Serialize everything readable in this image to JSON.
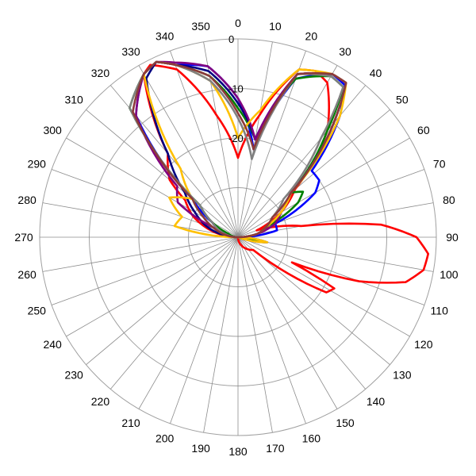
{
  "chart_data": {
    "type": "line",
    "subtype": "polar",
    "title": "",
    "angle_unit": "degrees",
    "angle_direction": "clockwise",
    "angle_zero": "top",
    "angle_ticks": [
      "0",
      "10",
      "20",
      "30",
      "40",
      "50",
      "60",
      "70",
      "80",
      "90",
      "100",
      "110",
      "120",
      "130",
      "140",
      "150",
      "160",
      "170",
      "180",
      "190",
      "200",
      "210",
      "220",
      "230",
      "240",
      "250",
      "260",
      "270",
      "280",
      "290",
      "300",
      "310",
      "320",
      "330",
      "340",
      "350"
    ],
    "radial_ticks": [
      "0",
      "-10",
      "-20"
    ],
    "radial_range": [
      -40,
      0
    ],
    "grid": true,
    "legend": "none",
    "series": [
      {
        "color": "#ff0000",
        "points": [
          [
            0,
            -24
          ],
          [
            10,
            -15
          ],
          [
            20,
            -4
          ],
          [
            25,
            -3
          ],
          [
            30,
            -4
          ],
          [
            40,
            -12
          ],
          [
            50,
            -25
          ],
          [
            60,
            -30
          ],
          [
            70,
            -36
          ],
          [
            80,
            -27
          ],
          [
            85,
            -11
          ],
          [
            90,
            -4
          ],
          [
            95,
            -1.5
          ],
          [
            100,
            -2
          ],
          [
            105,
            -5
          ],
          [
            110,
            -14
          ],
          [
            115,
            -28
          ],
          [
            118,
            -18
          ],
          [
            122,
            -19
          ],
          [
            130,
            -36
          ],
          [
            180,
            -40
          ],
          [
            270,
            -40
          ],
          [
            295,
            -30
          ],
          [
            305,
            -27
          ],
          [
            310,
            -22
          ],
          [
            315,
            -20
          ],
          [
            320,
            -18
          ],
          [
            330,
            -2
          ],
          [
            333,
            -1
          ],
          [
            340,
            -4
          ],
          [
            350,
            -15
          ],
          [
            360,
            -24
          ]
        ]
      },
      {
        "color": "#0000ff",
        "points": [
          [
            0,
            -12
          ],
          [
            10,
            -22
          ],
          [
            20,
            -6
          ],
          [
            30,
            -2
          ],
          [
            35,
            -2.5
          ],
          [
            40,
            -8
          ],
          [
            48,
            -20
          ],
          [
            55,
            -20
          ],
          [
            60,
            -22
          ],
          [
            70,
            -32
          ],
          [
            80,
            -32
          ],
          [
            90,
            -40
          ],
          [
            100,
            -34
          ],
          [
            110,
            -40
          ],
          [
            270,
            -40
          ],
          [
            290,
            -36
          ],
          [
            300,
            -34
          ],
          [
            310,
            -28
          ],
          [
            320,
            -8
          ],
          [
            330,
            -2
          ],
          [
            335,
            -1
          ],
          [
            340,
            -3
          ],
          [
            350,
            -5
          ],
          [
            360,
            -12
          ]
        ]
      },
      {
        "color": "#008000",
        "points": [
          [
            0,
            -14
          ],
          [
            10,
            -20
          ],
          [
            20,
            -6
          ],
          [
            30,
            -2.5
          ],
          [
            35,
            -3
          ],
          [
            40,
            -12
          ],
          [
            50,
            -26
          ],
          [
            55,
            -24
          ],
          [
            60,
            -26
          ],
          [
            70,
            -34
          ],
          [
            80,
            -36
          ],
          [
            90,
            -40
          ],
          [
            100,
            -36
          ],
          [
            110,
            -40
          ],
          [
            270,
            -40
          ],
          [
            290,
            -38
          ],
          [
            300,
            -34
          ],
          [
            310,
            -30
          ],
          [
            320,
            -6
          ],
          [
            330,
            -2
          ],
          [
            335,
            -1
          ],
          [
            340,
            -3
          ],
          [
            350,
            -7
          ],
          [
            360,
            -14
          ]
        ]
      },
      {
        "color": "#000080",
        "points": [
          [
            0,
            -13
          ],
          [
            10,
            -20
          ],
          [
            20,
            -5
          ],
          [
            30,
            -2
          ],
          [
            35,
            -2
          ],
          [
            40,
            -10
          ],
          [
            50,
            -26
          ],
          [
            60,
            -30
          ],
          [
            70,
            -34
          ],
          [
            80,
            -36
          ],
          [
            90,
            -40
          ],
          [
            270,
            -40
          ],
          [
            290,
            -33
          ],
          [
            300,
            -30
          ],
          [
            310,
            -26
          ],
          [
            320,
            -18
          ],
          [
            330,
            -3
          ],
          [
            335,
            -1
          ],
          [
            340,
            -3
          ],
          [
            350,
            -6
          ],
          [
            360,
            -13
          ]
        ]
      },
      {
        "color": "#800080",
        "points": [
          [
            0,
            -12
          ],
          [
            10,
            -20
          ],
          [
            20,
            -5
          ],
          [
            30,
            -2
          ],
          [
            35,
            -2
          ],
          [
            40,
            -10
          ],
          [
            50,
            -26
          ],
          [
            60,
            -30
          ],
          [
            70,
            -32
          ],
          [
            80,
            -36
          ],
          [
            90,
            -40
          ],
          [
            270,
            -40
          ],
          [
            290,
            -36
          ],
          [
            300,
            -26
          ],
          [
            310,
            -24
          ],
          [
            320,
            -8
          ],
          [
            330,
            -2
          ],
          [
            335,
            -1
          ],
          [
            340,
            -2.5
          ],
          [
            350,
            -5
          ],
          [
            360,
            -12
          ]
        ]
      },
      {
        "color": "#ffc000",
        "points": [
          [
            0,
            -20
          ],
          [
            10,
            -14
          ],
          [
            20,
            -4
          ],
          [
            30,
            -2
          ],
          [
            35,
            -2
          ],
          [
            40,
            -8
          ],
          [
            50,
            -26
          ],
          [
            60,
            -30
          ],
          [
            70,
            -34
          ],
          [
            80,
            -36
          ],
          [
            90,
            -40
          ],
          [
            100,
            -34
          ],
          [
            110,
            -40
          ],
          [
            270,
            -40
          ],
          [
            280,
            -27
          ],
          [
            290,
            -28
          ],
          [
            300,
            -24
          ],
          [
            310,
            -28
          ],
          [
            320,
            -22
          ],
          [
            330,
            -2
          ],
          [
            335,
            -1
          ],
          [
            340,
            -3
          ],
          [
            350,
            -8
          ],
          [
            360,
            -20
          ]
        ]
      },
      {
        "color": "#808080",
        "points": [
          [
            0,
            -16
          ],
          [
            10,
            -24
          ],
          [
            20,
            -5
          ],
          [
            30,
            -2.5
          ],
          [
            35,
            -3
          ],
          [
            40,
            -14
          ],
          [
            50,
            -28
          ],
          [
            60,
            -32
          ],
          [
            70,
            -34
          ],
          [
            80,
            -36
          ],
          [
            90,
            -40
          ],
          [
            270,
            -40
          ],
          [
            300,
            -34
          ],
          [
            310,
            -30
          ],
          [
            320,
            -6
          ],
          [
            330,
            -2
          ],
          [
            335,
            -1
          ],
          [
            340,
            -3
          ],
          [
            350,
            -8
          ],
          [
            360,
            -16
          ]
        ]
      },
      {
        "color": "#8b3a3a",
        "points": [
          [
            0,
            -15
          ],
          [
            10,
            -22
          ],
          [
            20,
            -5
          ],
          [
            30,
            -2
          ],
          [
            35,
            -2
          ],
          [
            40,
            -10
          ],
          [
            50,
            -26
          ],
          [
            60,
            -32
          ],
          [
            70,
            -34
          ],
          [
            80,
            -36
          ],
          [
            90,
            -40
          ],
          [
            270,
            -40
          ],
          [
            290,
            -35
          ],
          [
            300,
            -32
          ],
          [
            310,
            -28
          ],
          [
            320,
            -7
          ],
          [
            330,
            -2
          ],
          [
            335,
            -1
          ],
          [
            340,
            -3
          ],
          [
            350,
            -7
          ],
          [
            360,
            -15
          ]
        ]
      }
    ]
  }
}
